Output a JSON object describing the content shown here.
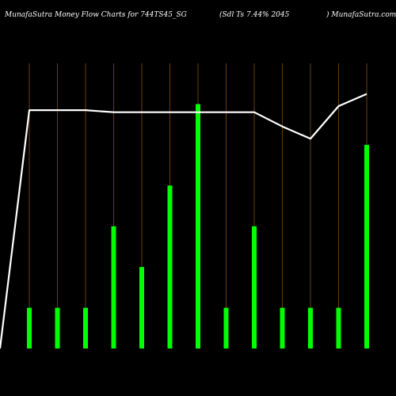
{
  "header": {
    "title_left": "MunafaSutra  Money Flow  Charts for 744TS45_SG",
    "title_mid": "(Sdl Ts 7.44% 2045",
    "title_right": ") MunafaSutra.com"
  },
  "colors": {
    "background": "#000000",
    "bar": "#00ff00",
    "line": "#ffffff",
    "gridline": "#b5651d"
  },
  "chart_data": {
    "type": "bar",
    "title": "MunafaSutra  Money Flow  Charts for 744TS45_SG (Sdl Ts 7.44% 2045 ) MunafaSutra.com",
    "categories": [
      "",
      "",
      "",
      "",
      "",
      "",
      "",
      "",
      "",
      "",
      "",
      "",
      ""
    ],
    "values": [
      1,
      1,
      1,
      3,
      2,
      4,
      6,
      1,
      3,
      1,
      1,
      1,
      5
    ],
    "line_series": {
      "values": [
        5.85,
        5.85,
        5.85,
        5.8,
        5.8,
        5.8,
        5.8,
        5.8,
        5.8,
        5.45,
        5.15,
        5.95,
        6.25
      ],
      "start_value": 0
    },
    "ylim": [
      0,
      7
    ],
    "grid": true,
    "legend": "none"
  }
}
